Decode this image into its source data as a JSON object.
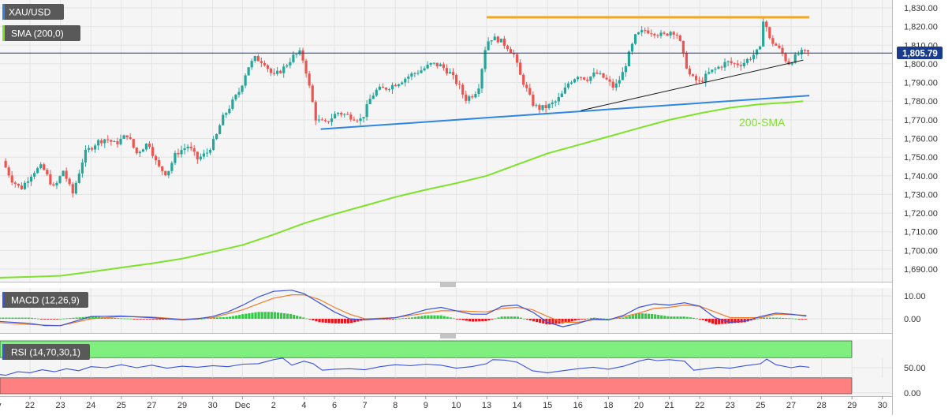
{
  "chart_data": [
    {
      "type": "candlestick",
      "legend": [
        {
          "label": "XAU/USD"
        },
        {
          "label": "SMA (200,0)"
        }
      ],
      "ylim": [
        1685,
        1834
      ],
      "y_ticks": [
        1690,
        1700,
        1710,
        1720,
        1730,
        1740,
        1750,
        1760,
        1770,
        1780,
        1790,
        1800,
        1810,
        1820,
        1830
      ],
      "y_tick_labels": [
        "1,690.00",
        "1,700.00",
        "1,710.00",
        "1,720.00",
        "1,730.00",
        "1,740.00",
        "1,750.00",
        "1,760.00",
        "1,770.00",
        "1,780.00",
        "1,790.00",
        "1,800.00",
        "1,810.00",
        "1,820.00",
        "1,830.00"
      ],
      "current_price": 1805.79,
      "current_price_label": "1,805.79",
      "x_ticks": [
        {
          "label": "Nov",
          "t": -1.2
        },
        {
          "label": "22",
          "t": 0
        },
        {
          "label": "23",
          "t": 1
        },
        {
          "label": "24",
          "t": 2
        },
        {
          "label": "25",
          "t": 3
        },
        {
          "label": "27",
          "t": 4
        },
        {
          "label": "29",
          "t": 5
        },
        {
          "label": "30",
          "t": 6
        },
        {
          "label": "Dec",
          "t": 6.98
        },
        {
          "label": "2",
          "t": 8
        },
        {
          "label": "4",
          "t": 9
        },
        {
          "label": "6",
          "t": 10
        },
        {
          "label": "7",
          "t": 11
        },
        {
          "label": "8",
          "t": 12
        },
        {
          "label": "9",
          "t": 13
        },
        {
          "label": "10",
          "t": 14
        },
        {
          "label": "13",
          "t": 15
        },
        {
          "label": "14",
          "t": 16
        },
        {
          "label": "15",
          "t": 17
        },
        {
          "label": "16",
          "t": 18
        },
        {
          "label": "18",
          "t": 19
        },
        {
          "label": "20",
          "t": 20
        },
        {
          "label": "21",
          "t": 21
        },
        {
          "label": "22",
          "t": 22
        },
        {
          "label": "23",
          "t": 23
        },
        {
          "label": "25",
          "t": 24
        },
        {
          "label": "27",
          "t": 25
        },
        {
          "label": "28",
          "t": 26
        },
        {
          "label": "29",
          "t": 27
        },
        {
          "label": "30",
          "t": 28
        }
      ],
      "candle_anchors": [
        [
          -0.8,
          1748
        ],
        [
          -0.5,
          1738
        ],
        [
          -0.2,
          1733
        ],
        [
          0.2,
          1742
        ],
        [
          0.5,
          1745
        ],
        [
          0.9,
          1733
        ],
        [
          1.2,
          1743
        ],
        [
          1.5,
          1730
        ],
        [
          1.9,
          1752
        ],
        [
          2.3,
          1758
        ],
        [
          2.6,
          1760
        ],
        [
          2.9,
          1757
        ],
        [
          3.3,
          1762
        ],
        [
          3.6,
          1752
        ],
        [
          4.0,
          1758
        ],
        [
          4.3,
          1745
        ],
        [
          4.6,
          1741
        ],
        [
          4.9,
          1752
        ],
        [
          5.3,
          1756
        ],
        [
          5.6,
          1749
        ],
        [
          5.9,
          1752
        ],
        [
          6.2,
          1760
        ],
        [
          6.4,
          1770
        ],
        [
          6.7,
          1778
        ],
        [
          7.0,
          1786
        ],
        [
          7.25,
          1798
        ],
        [
          7.5,
          1803
        ],
        [
          7.8,
          1801
        ],
        [
          8.1,
          1793
        ],
        [
          8.45,
          1798
        ],
        [
          8.75,
          1804
        ],
        [
          9.0,
          1806
        ],
        [
          9.15,
          1798
        ],
        [
          9.3,
          1786
        ],
        [
          9.5,
          1770
        ],
        [
          9.8,
          1768
        ],
        [
          10.2,
          1774
        ],
        [
          10.6,
          1772
        ],
        [
          11.0,
          1770
        ],
        [
          11.3,
          1782
        ],
        [
          11.5,
          1786
        ],
        [
          11.8,
          1787
        ],
        [
          12.2,
          1790
        ],
        [
          12.6,
          1794
        ],
        [
          13.0,
          1797
        ],
        [
          13.3,
          1800
        ],
        [
          13.6,
          1799
        ],
        [
          13.9,
          1795
        ],
        [
          14.2,
          1788
        ],
        [
          14.4,
          1781
        ],
        [
          14.7,
          1784
        ],
        [
          14.9,
          1790
        ],
        [
          15.0,
          1806
        ],
        [
          15.2,
          1814
        ],
        [
          15.5,
          1813
        ],
        [
          15.8,
          1809
        ],
        [
          16.0,
          1805
        ],
        [
          16.2,
          1794
        ],
        [
          16.4,
          1787
        ],
        [
          16.6,
          1779
        ],
        [
          16.8,
          1776
        ],
        [
          17.1,
          1777
        ],
        [
          17.4,
          1780
        ],
        [
          17.6,
          1784
        ],
        [
          17.8,
          1790
        ],
        [
          18.1,
          1794
        ],
        [
          18.4,
          1792
        ],
        [
          18.7,
          1795
        ],
        [
          19.0,
          1792
        ],
        [
          19.3,
          1787
        ],
        [
          19.55,
          1794
        ],
        [
          19.8,
          1806
        ],
        [
          20.0,
          1815
        ],
        [
          20.3,
          1818
        ],
        [
          20.6,
          1817
        ],
        [
          20.9,
          1815
        ],
        [
          21.2,
          1818
        ],
        [
          21.4,
          1815
        ],
        [
          21.6,
          1802
        ],
        [
          21.8,
          1793
        ],
        [
          22.1,
          1790
        ],
        [
          22.4,
          1795
        ],
        [
          22.7,
          1798
        ],
        [
          23.0,
          1801
        ],
        [
          23.2,
          1800
        ],
        [
          23.5,
          1800
        ],
        [
          23.8,
          1804
        ],
        [
          24.1,
          1808
        ],
        [
          24.2,
          1826
        ],
        [
          24.4,
          1813
        ],
        [
          24.6,
          1810
        ],
        [
          24.8,
          1806
        ],
        [
          25.0,
          1800
        ],
        [
          25.2,
          1803
        ],
        [
          25.4,
          1806
        ],
        [
          25.6,
          1806
        ]
      ],
      "resistance_line": {
        "from": [
          15.0,
          1825
        ],
        "to": [
          25.6,
          1825
        ]
      },
      "support_line": {
        "from": [
          9.55,
          1765
        ],
        "to": [
          25.6,
          1783
        ]
      },
      "wedge_line": {
        "from": [
          18.1,
          1775
        ],
        "to": [
          25.4,
          1802
        ]
      },
      "sma_200": [
        [
          -1.2,
          1685.3
        ],
        [
          0,
          1685.8
        ],
        [
          1,
          1686.4
        ],
        [
          2,
          1688.5
        ],
        [
          3,
          1690.8
        ],
        [
          4,
          1693
        ],
        [
          5,
          1695.6
        ],
        [
          6,
          1699.2
        ],
        [
          7,
          1703
        ],
        [
          8,
          1708.5
        ],
        [
          9,
          1714.5
        ],
        [
          10,
          1719.5
        ],
        [
          11,
          1724
        ],
        [
          12,
          1728.6
        ],
        [
          13,
          1732.5
        ],
        [
          14,
          1736
        ],
        [
          15,
          1740
        ],
        [
          16,
          1746
        ],
        [
          17,
          1752
        ],
        [
          18,
          1756.5
        ],
        [
          19,
          1761
        ],
        [
          20,
          1765.6
        ],
        [
          21,
          1770
        ],
        [
          22,
          1773.5
        ],
        [
          23,
          1776.5
        ],
        [
          24,
          1778.4
        ],
        [
          25,
          1779.4
        ],
        [
          25.4,
          1780
        ]
      ],
      "sma_label": "200-SMA",
      "colors": {
        "up": "#26a69a",
        "down": "#ef5350",
        "sma": "#7ee22a",
        "support": "#2e86de",
        "resistance": "#f5a623",
        "wedge": "#1a1a1a",
        "price_line": "#1a3b8c"
      }
    },
    {
      "type": "macd",
      "legend": {
        "label": "MACD (12,26,9)"
      },
      "ylim": [
        -6,
        13
      ],
      "y_ticks": [
        0,
        10
      ],
      "y_tick_labels": [
        "0.00",
        "10.00"
      ],
      "macd_line": [
        [
          -1.2,
          -1
        ],
        [
          0,
          -2
        ],
        [
          0.5,
          -3
        ],
        [
          1,
          -3
        ],
        [
          1.5,
          -1
        ],
        [
          2,
          1
        ],
        [
          3,
          1.2
        ],
        [
          4,
          0.5
        ],
        [
          5,
          -0.5
        ],
        [
          5.5,
          0
        ],
        [
          6,
          1
        ],
        [
          6.5,
          3
        ],
        [
          7,
          6
        ],
        [
          7.5,
          9.5
        ],
        [
          8,
          12
        ],
        [
          8.6,
          12.5
        ],
        [
          9,
          11
        ],
        [
          9.5,
          7
        ],
        [
          10,
          3
        ],
        [
          10.5,
          0
        ],
        [
          11,
          -0.5
        ],
        [
          12,
          0.5
        ],
        [
          12.5,
          2
        ],
        [
          13,
          4
        ],
        [
          13.5,
          5
        ],
        [
          14,
          3.5
        ],
        [
          14.5,
          2
        ],
        [
          15,
          2
        ],
        [
          15.5,
          5.5
        ],
        [
          16,
          6
        ],
        [
          16.5,
          3
        ],
        [
          17,
          -1.5
        ],
        [
          17.5,
          -3.5
        ],
        [
          18,
          -2
        ],
        [
          18.5,
          0
        ],
        [
          19,
          -0.5
        ],
        [
          19.5,
          1.5
        ],
        [
          20,
          5
        ],
        [
          20.5,
          6.5
        ],
        [
          21,
          6
        ],
        [
          21.5,
          7
        ],
        [
          22,
          5.5
        ],
        [
          22.5,
          0.5
        ],
        [
          23,
          -1.5
        ],
        [
          23.5,
          -1
        ],
        [
          24,
          1
        ],
        [
          24.5,
          2.5
        ],
        [
          25,
          2
        ],
        [
          25.5,
          1.2
        ]
      ],
      "signal_line": [
        [
          -1.2,
          -1.5
        ],
        [
          0,
          -2.5
        ],
        [
          1,
          -3
        ],
        [
          2,
          0
        ],
        [
          3,
          1
        ],
        [
          4,
          0.8
        ],
        [
          5,
          -0.2
        ],
        [
          6,
          0.5
        ],
        [
          7,
          4
        ],
        [
          7.5,
          6.5
        ],
        [
          8,
          9
        ],
        [
          8.6,
          10.5
        ],
        [
          9,
          10.5
        ],
        [
          9.5,
          8.5
        ],
        [
          10,
          5
        ],
        [
          10.5,
          2
        ],
        [
          11,
          0
        ],
        [
          12,
          0.5
        ],
        [
          13,
          2.5
        ],
        [
          13.5,
          3.5
        ],
        [
          14,
          3.5
        ],
        [
          15,
          3
        ],
        [
          15.5,
          4.5
        ],
        [
          16,
          5
        ],
        [
          16.5,
          4
        ],
        [
          17,
          1
        ],
        [
          17.5,
          -1.5
        ],
        [
          18,
          -1.5
        ],
        [
          18.5,
          -0.5
        ],
        [
          19,
          -0.5
        ],
        [
          20,
          2.5
        ],
        [
          20.5,
          4.5
        ],
        [
          21,
          5
        ],
        [
          21.5,
          6
        ],
        [
          22,
          5.5
        ],
        [
          22.5,
          3
        ],
        [
          23,
          0.5
        ],
        [
          24,
          0.5
        ],
        [
          24.5,
          2
        ],
        [
          25,
          1.8
        ],
        [
          25.5,
          1.5
        ]
      ],
      "colors": {
        "macd": "#3b52d9",
        "signal": "#f07d2c",
        "hist_up": "#2ecc40",
        "hist_down": "#e8141e"
      }
    },
    {
      "type": "rsi",
      "legend": {
        "label": "RSI (14,70,30,1)"
      },
      "ylim": [
        -3,
        103
      ],
      "y_ticks": [
        0,
        50
      ],
      "y_tick_labels": [
        "0.00",
        "50.00"
      ],
      "overbought": 70,
      "oversold": 30,
      "rsi_line": [
        [
          -1.2,
          38
        ],
        [
          -0.8,
          35
        ],
        [
          -0.4,
          42
        ],
        [
          0,
          40
        ],
        [
          0.4,
          46
        ],
        [
          0.8,
          42
        ],
        [
          1.2,
          48
        ],
        [
          1.6,
          44
        ],
        [
          2,
          52
        ],
        [
          2.5,
          50
        ],
        [
          3,
          56
        ],
        [
          3.5,
          50
        ],
        [
          4,
          55
        ],
        [
          4.5,
          49
        ],
        [
          5,
          53
        ],
        [
          5.5,
          51
        ],
        [
          6,
          54
        ],
        [
          6.5,
          52
        ],
        [
          7,
          57
        ],
        [
          7.5,
          58
        ],
        [
          8,
          66
        ],
        [
          8.3,
          69
        ],
        [
          8.6,
          55
        ],
        [
          9,
          63
        ],
        [
          9.3,
          58
        ],
        [
          9.6,
          45
        ],
        [
          10,
          47
        ],
        [
          10.5,
          48
        ],
        [
          11,
          46
        ],
        [
          11.5,
          52
        ],
        [
          12,
          56
        ],
        [
          12.5,
          54
        ],
        [
          13,
          57
        ],
        [
          13.5,
          55
        ],
        [
          14,
          49
        ],
        [
          14.5,
          52
        ],
        [
          15,
          58
        ],
        [
          15.2,
          66
        ],
        [
          15.6,
          65
        ],
        [
          16,
          61
        ],
        [
          16.5,
          44
        ],
        [
          17,
          40
        ],
        [
          17.5,
          44
        ],
        [
          18,
          48
        ],
        [
          18.5,
          51
        ],
        [
          19,
          47
        ],
        [
          19.5,
          53
        ],
        [
          20,
          63
        ],
        [
          20.3,
          67
        ],
        [
          20.6,
          64
        ],
        [
          21,
          66
        ],
        [
          21.5,
          63
        ],
        [
          21.8,
          45
        ],
        [
          22.2,
          48
        ],
        [
          22.6,
          51
        ],
        [
          23,
          49
        ],
        [
          23.5,
          54
        ],
        [
          24,
          58
        ],
        [
          24.2,
          67
        ],
        [
          24.5,
          56
        ],
        [
          25,
          50
        ],
        [
          25.3,
          53
        ],
        [
          25.6,
          51
        ]
      ],
      "colors": {
        "line": "#3b52d9",
        "ob_zone": "#7ff07f",
        "os_zone": "#ff8080"
      }
    }
  ]
}
